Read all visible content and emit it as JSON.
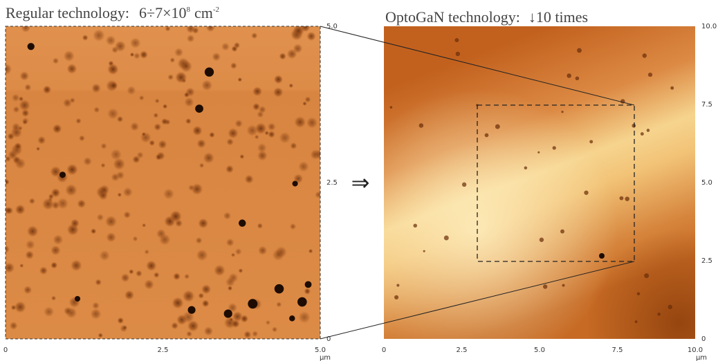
{
  "left": {
    "title": "Regular technology:",
    "density": {
      "base": "6÷7×10",
      "exponent": "8",
      "unit": "cm",
      "unit_exponent": "-2"
    },
    "x_ticks": [
      "0",
      "2.5",
      "5.0"
    ],
    "y_ticks": [
      "5.0",
      "2.5",
      "0"
    ],
    "unit": "μm"
  },
  "arrow": "⇒",
  "right": {
    "title": "OptoGaN technology:",
    "note": "↓10 times",
    "x_ticks": [
      "0",
      "2.5",
      "5.0",
      "7.5",
      "10.0"
    ],
    "y_ticks": [
      "10.0",
      "7.5",
      "5.0",
      "2.5",
      "0"
    ],
    "unit": "μm"
  }
}
